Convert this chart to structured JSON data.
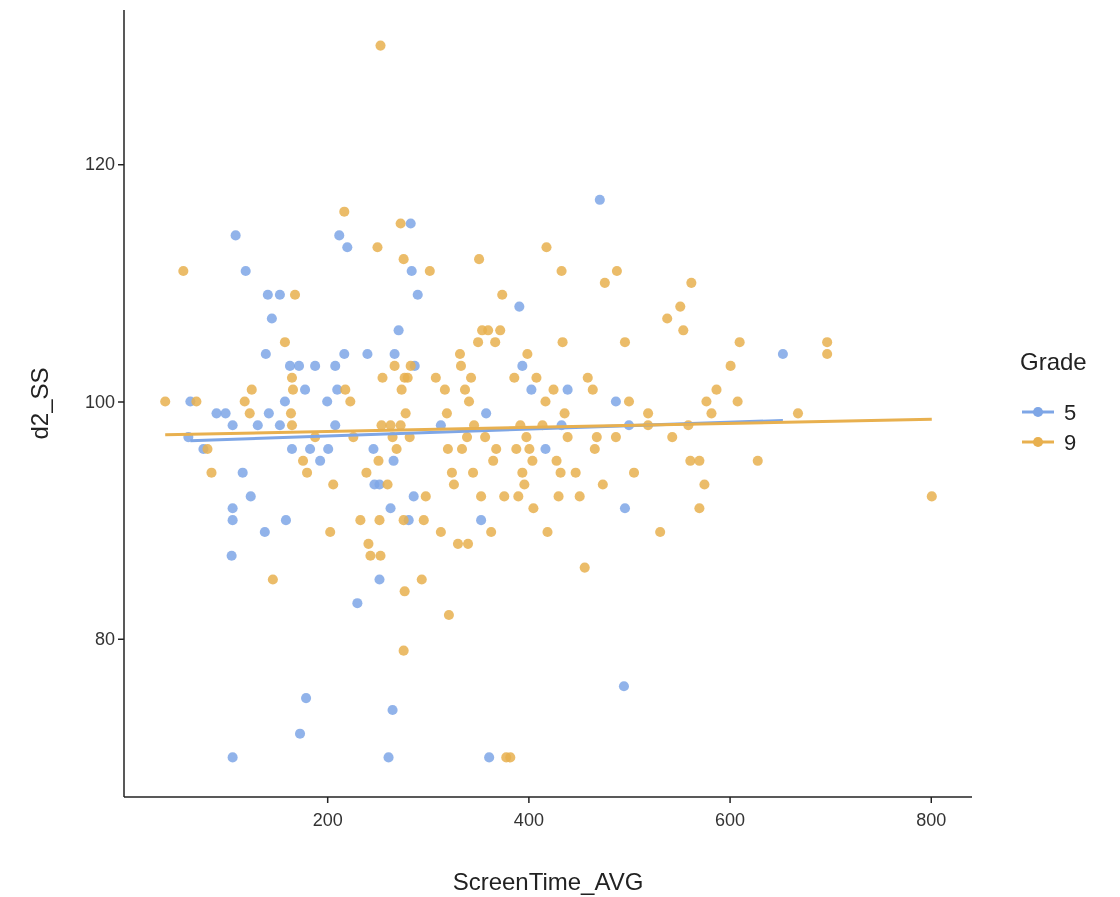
{
  "chart_data": {
    "type": "scatter",
    "xlabel": "ScreenTime_AVG",
    "ylabel": "d2_SS",
    "legend_title": "Grade",
    "legend": "right",
    "marker": "circle",
    "grid": false,
    "xlim": [
      2,
      837
    ],
    "ylim": [
      67,
      133
    ],
    "xticks": [
      200,
      400,
      600,
      800
    ],
    "yticks": [
      80,
      100,
      120
    ],
    "series": [
      {
        "name": "5",
        "color": "#7ea6e6",
        "x": [
          64,
          62,
          77,
          90,
          99,
          106,
          109,
          119,
          106,
          106,
          105,
          116,
          124,
          131,
          138,
          139,
          142,
          141,
          145,
          153,
          153,
          159,
          158,
          163,
          165,
          172,
          178,
          179,
          173,
          183,
          188,
          193,
          200,
          201,
          208,
          208,
          210,
          212,
          220,
          106,
          230,
          240,
          246,
          247,
          252,
          252,
          261,
          263,
          265,
          266,
          267,
          271,
          281,
          283,
          284,
          286,
          290,
          287,
          217,
          313,
          353,
          358,
          361,
          391,
          394,
          403,
          417,
          433,
          439,
          471,
          487,
          496,
          495,
          500,
          653
        ],
        "values": [
          100,
          97,
          96,
          99,
          99,
          98,
          114,
          111,
          91,
          90,
          87,
          94,
          92,
          98,
          89,
          104,
          99,
          109,
          107,
          109,
          98,
          90,
          100,
          103,
          96,
          103,
          101,
          75,
          72,
          96,
          103,
          95,
          100,
          96,
          103,
          98,
          101,
          114,
          113,
          70,
          83,
          104,
          96,
          93,
          93,
          85,
          70,
          91,
          74,
          95,
          104,
          106,
          90,
          115,
          111,
          92,
          109,
          103,
          104,
          98,
          90,
          99,
          70,
          108,
          103,
          101,
          96,
          98,
          101,
          117,
          100,
          91,
          76,
          98,
          104
        ]
      },
      {
        "name": "9",
        "color": "#e8b04f",
        "x": [
          39,
          57,
          70,
          81,
          85,
          118,
          123,
          125,
          146,
          158,
          164,
          165,
          166,
          165,
          168,
          176,
          180,
          188,
          203,
          206,
          217,
          218,
          223,
          226,
          233,
          239,
          241,
          243,
          251,
          250,
          252,
          253,
          254,
          255,
          260,
          263,
          265,
          267,
          269,
          273,
          273,
          274,
          276,
          277,
          278,
          280,
          277,
          276,
          276,
          282,
          283,
          294,
          296,
          298,
          302,
          308,
          313,
          317,
          319,
          320,
          321,
          324,
          326,
          330,
          332,
          333,
          334,
          337,
          339,
          340,
          341,
          343,
          345,
          346,
          350,
          351,
          353,
          354,
          357,
          360,
          363,
          365,
          367,
          368,
          372,
          374,
          376,
          378,
          382,
          386,
          388,
          390,
          392,
          394,
          396,
          398,
          399,
          401,
          404,
          405,
          408,
          414,
          417,
          418,
          419,
          425,
          428,
          430,
          432,
          433,
          434,
          436,
          439,
          447,
          451,
          456,
          459,
          464,
          466,
          468,
          474,
          476,
          487,
          488,
          496,
          500,
          505,
          519,
          519,
          531,
          538,
          543,
          551,
          554,
          559,
          561,
          562,
          570,
          570,
          575,
          577,
          582,
          587,
          601,
          608,
          610,
          628,
          668,
          697,
          697,
          801,
          253
        ],
        "values": [
          100,
          111,
          100,
          96,
          94,
          100,
          99,
          101,
          85,
          105,
          99,
          102,
          101,
          98,
          109,
          95,
          94,
          97,
          89,
          93,
          116,
          101,
          100,
          97,
          90,
          94,
          88,
          87,
          95,
          113,
          90,
          87,
          98,
          102,
          93,
          98,
          97,
          103,
          96,
          98,
          115,
          101,
          112,
          102,
          99,
          102,
          84,
          79,
          90,
          97,
          103,
          85,
          90,
          92,
          111,
          102,
          89,
          101,
          99,
          96,
          82,
          94,
          93,
          88,
          104,
          103,
          96,
          101,
          97,
          88,
          100,
          102,
          94,
          98,
          105,
          112,
          92,
          106,
          97,
          106,
          89,
          95,
          105,
          96,
          106,
          109,
          92,
          70,
          70,
          102,
          96,
          92,
          98,
          94,
          93,
          97,
          104,
          96,
          95,
          91,
          102,
          98,
          100,
          113,
          89,
          101,
          95,
          92,
          94,
          111,
          105,
          99,
          97,
          94,
          92,
          86,
          102,
          101,
          96,
          97,
          93,
          110,
          97,
          111,
          105,
          100,
          94,
          99,
          98,
          89,
          107,
          97,
          108,
          106,
          98,
          95,
          110,
          95,
          91,
          93,
          100,
          99,
          101,
          103,
          100,
          105,
          95,
          99,
          105,
          104,
          92,
          130
        ]
      },
      {
        "type": "line",
        "marker": "none",
        "color": "#7ea6e6",
        "x": [
          64,
          653
        ],
        "values": [
          96.7,
          98.4
        ]
      },
      {
        "type": "line",
        "marker": "none",
        "color": "#e8b04f",
        "x": [
          39,
          801
        ],
        "values": [
          97.2,
          98.5
        ]
      }
    ]
  }
}
